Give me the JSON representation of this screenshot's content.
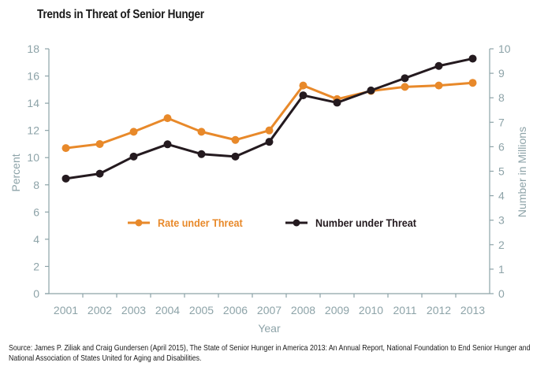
{
  "chart_data": {
    "type": "line",
    "title": "Trends in Threat of Senior Hunger",
    "xlabel": "Year",
    "ylabel": "Percent",
    "y2label": "Number in Millions",
    "categories": [
      "2001",
      "2002",
      "2003",
      "2004",
      "2005",
      "2006",
      "2007",
      "2008",
      "2009",
      "2010",
      "2011",
      "2012",
      "2013"
    ],
    "ylim": [
      0,
      18
    ],
    "y2lim": [
      0,
      10
    ],
    "yticks": [
      "0",
      "2",
      "4",
      "6",
      "8",
      "10",
      "12",
      "14",
      "16",
      "18"
    ],
    "y2ticks": [
      "0",
      "1",
      "2",
      "3",
      "4",
      "5",
      "6",
      "7",
      "8",
      "9",
      "10"
    ],
    "grid": false,
    "legend_position": "center",
    "series": [
      {
        "name": "Rate under Threat",
        "axis": "left",
        "color": "#e8892a",
        "values": [
          10.7,
          11.0,
          11.9,
          12.9,
          11.9,
          11.3,
          12.0,
          15.3,
          14.3,
          14.9,
          15.2,
          15.3,
          15.5
        ]
      },
      {
        "name": "Number under Threat",
        "axis": "right",
        "color": "#241a1f",
        "values": [
          4.7,
          4.9,
          5.6,
          6.1,
          5.7,
          5.6,
          6.2,
          8.1,
          7.8,
          8.3,
          8.8,
          9.3,
          9.6
        ]
      }
    ],
    "axis_color": "#8da3a8"
  },
  "source": {
    "line1": "Source: James P. Ziliak and Craig Gundersen (April 2015), The State of Senior Hunger in America 2013: An Annual Report, National Foundation to End Senior Hunger and",
    "line2": "National Association of States United for Aging and Disabilities."
  }
}
